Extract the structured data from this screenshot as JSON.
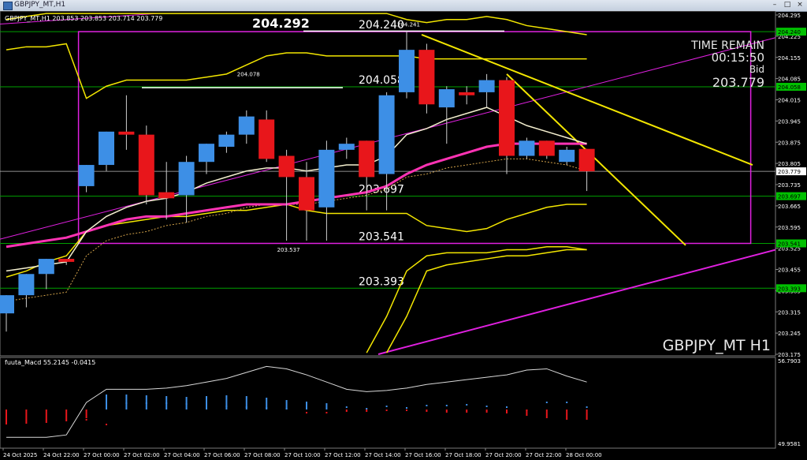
{
  "window": {
    "title": "GBPJPY_MT,H1"
  },
  "chart_data": {
    "type": "candlestick",
    "symbol": "GBPJPY_MT",
    "timeframe": "H1",
    "header": "GBPJPY_MT,H1  203.853 203.853 203.714 203.779",
    "watermark": "GBPJPY_MT H1",
    "timer": {
      "label1": "TIME REMAIN",
      "countdown": "00:15:50",
      "label2": "Bid",
      "bid": "203.779"
    },
    "ylim": [
      203.175,
      204.295
    ],
    "price_ticks": [
      "204.295",
      "204.225",
      "204.155",
      "204.085",
      "204.015",
      "203.945",
      "203.875",
      "203.805",
      "203.735",
      "203.665",
      "203.595",
      "203.525",
      "203.455",
      "203.385",
      "203.315",
      "203.245",
      "203.175"
    ],
    "price_tags": [
      {
        "value": "204.240",
        "color": "#00c000"
      },
      {
        "value": "204.058",
        "color": "#00c000"
      },
      {
        "value": "203.779",
        "color": "#ffffff"
      },
      {
        "value": "203.697",
        "color": "#00c000"
      },
      {
        "value": "203.541",
        "color": "#00c000"
      },
      {
        "value": "203.393",
        "color": "#00c000"
      }
    ],
    "levels": [
      {
        "label": "204.292",
        "y": 204.292,
        "kind": "big"
      },
      {
        "label": "204.240",
        "y": 204.24,
        "kind": "green"
      },
      {
        "label": "204.058",
        "y": 204.058,
        "kind": "green"
      },
      {
        "label": "203.697",
        "y": 203.697,
        "kind": "green"
      },
      {
        "label": "203.541",
        "y": 203.541,
        "kind": "green"
      },
      {
        "label": "203.393",
        "y": 203.393,
        "kind": "green"
      }
    ],
    "small_labels": [
      {
        "label": "204.078",
        "i": 12,
        "y": 204.078
      },
      {
        "label": "203.537",
        "i": 14,
        "y": 203.537
      },
      {
        "label": "204.241",
        "i": 20,
        "y": 204.241
      }
    ],
    "time_labels": [
      "24 Oct 2025",
      "24 Oct 22:00",
      "27 Oct 00:00",
      "27 Oct 02:00",
      "27 Oct 04:00",
      "27 Oct 06:00",
      "27 Oct 08:00",
      "27 Oct 10:00",
      "27 Oct 12:00",
      "27 Oct 14:00",
      "27 Oct 16:00",
      "27 Oct 18:00",
      "27 Oct 20:00",
      "27 Oct 22:00",
      "28 Oct 00:00"
    ],
    "candles": [
      {
        "o": 203.31,
        "h": 203.37,
        "l": 203.25,
        "c": 203.37
      },
      {
        "o": 203.37,
        "h": 203.44,
        "l": 203.33,
        "c": 203.44
      },
      {
        "o": 203.44,
        "h": 203.49,
        "l": 203.39,
        "c": 203.49
      },
      {
        "o": 203.49,
        "h": 203.49,
        "l": 203.47,
        "c": 203.48
      },
      {
        "o": 203.73,
        "h": 203.8,
        "l": 203.71,
        "c": 203.8
      },
      {
        "o": 203.8,
        "h": 203.91,
        "l": 203.78,
        "c": 203.91
      },
      {
        "o": 203.91,
        "h": 204.03,
        "l": 203.85,
        "c": 203.9
      },
      {
        "o": 203.9,
        "h": 203.93,
        "l": 203.67,
        "c": 203.7
      },
      {
        "o": 203.71,
        "h": 203.81,
        "l": 203.62,
        "c": 203.69
      },
      {
        "o": 203.7,
        "h": 203.83,
        "l": 203.61,
        "c": 203.81
      },
      {
        "o": 203.81,
        "h": 203.87,
        "l": 203.77,
        "c": 203.87
      },
      {
        "o": 203.86,
        "h": 203.91,
        "l": 203.84,
        "c": 203.9
      },
      {
        "o": 203.9,
        "h": 203.98,
        "l": 203.87,
        "c": 203.96
      },
      {
        "o": 203.95,
        "h": 203.98,
        "l": 203.81,
        "c": 203.82
      },
      {
        "o": 203.83,
        "h": 203.85,
        "l": 203.55,
        "c": 203.76
      },
      {
        "o": 203.76,
        "h": 203.81,
        "l": 203.55,
        "c": 203.65
      },
      {
        "o": 203.66,
        "h": 203.88,
        "l": 203.55,
        "c": 203.85
      },
      {
        "o": 203.85,
        "h": 203.89,
        "l": 203.82,
        "c": 203.87
      },
      {
        "o": 203.88,
        "h": 203.88,
        "l": 203.65,
        "c": 203.76
      },
      {
        "o": 203.77,
        "h": 204.04,
        "l": 203.65,
        "c": 204.03
      },
      {
        "o": 204.04,
        "h": 204.241,
        "l": 204.02,
        "c": 204.18
      },
      {
        "o": 204.18,
        "h": 204.2,
        "l": 203.97,
        "c": 204.0
      },
      {
        "o": 203.99,
        "h": 204.06,
        "l": 203.87,
        "c": 204.05
      },
      {
        "o": 204.04,
        "h": 204.06,
        "l": 204.0,
        "c": 204.03
      },
      {
        "o": 204.04,
        "h": 204.1,
        "l": 203.99,
        "c": 204.08
      },
      {
        "o": 204.08,
        "h": 204.09,
        "l": 203.77,
        "c": 203.83
      },
      {
        "o": 203.83,
        "h": 203.89,
        "l": 203.82,
        "c": 203.88
      },
      {
        "o": 203.88,
        "h": 203.88,
        "l": 203.82,
        "c": 203.83
      },
      {
        "o": 203.81,
        "h": 203.86,
        "l": 203.8,
        "c": 203.85
      },
      {
        "o": 203.853,
        "h": 203.853,
        "l": 203.714,
        "c": 203.779
      }
    ],
    "ma_white": [
      203.45,
      203.46,
      203.47,
      203.48,
      203.58,
      203.63,
      203.66,
      203.68,
      203.69,
      203.71,
      203.74,
      203.76,
      203.78,
      203.79,
      203.79,
      203.78,
      203.79,
      203.8,
      203.8,
      203.83,
      203.9,
      203.92,
      203.95,
      203.97,
      203.99,
      203.96,
      203.93,
      203.91,
      203.89,
      203.87
    ],
    "ma_pink": [
      203.53,
      203.54,
      203.55,
      203.56,
      203.58,
      203.6,
      203.62,
      203.63,
      203.63,
      203.64,
      203.65,
      203.66,
      203.67,
      203.67,
      203.67,
      203.68,
      203.69,
      203.7,
      203.71,
      203.73,
      203.77,
      203.8,
      203.82,
      203.84,
      203.86,
      203.87,
      203.87,
      203.87,
      203.87,
      203.87
    ],
    "ma_dotted": [
      203.35,
      203.36,
      203.37,
      203.38,
      203.5,
      203.55,
      203.57,
      203.58,
      203.6,
      203.61,
      203.63,
      203.64,
      203.66,
      203.67,
      203.67,
      203.67,
      203.68,
      203.69,
      203.7,
      203.72,
      203.76,
      203.77,
      203.79,
      203.8,
      203.81,
      203.82,
      203.82,
      203.81,
      203.8,
      203.78
    ],
    "band_upper": [
      204.18,
      204.19,
      204.19,
      204.2,
      204.02,
      204.06,
      204.08,
      204.08,
      204.08,
      204.08,
      204.09,
      204.1,
      204.13,
      204.16,
      204.17,
      204.17,
      204.16,
      204.16,
      204.16,
      204.16,
      204.16,
      204.15,
      204.15,
      204.15,
      204.15,
      204.15,
      204.15,
      204.15,
      204.15,
      204.15
    ],
    "band_lower": [
      203.43,
      203.45,
      203.48,
      203.5,
      203.58,
      203.6,
      203.61,
      203.62,
      203.63,
      203.63,
      203.64,
      203.65,
      203.65,
      203.66,
      203.67,
      203.65,
      203.64,
      203.64,
      203.64,
      203.64,
      203.64,
      203.6,
      203.59,
      203.58,
      203.59,
      203.62,
      203.64,
      203.66,
      203.67,
      203.67
    ],
    "band_outer_upper": [
      204.28,
      204.29,
      204.3,
      204.3,
      204.3,
      204.3,
      204.3,
      204.3,
      204.3,
      204.3,
      204.3,
      204.3,
      204.3,
      204.3,
      204.3,
      204.3,
      204.3,
      204.3,
      204.3,
      204.3,
      204.28,
      204.27,
      204.28,
      204.28,
      204.29,
      204.28,
      204.26,
      204.25,
      204.24,
      204.23
    ],
    "band_lower2": [
      null,
      null,
      null,
      null,
      null,
      null,
      null,
      null,
      null,
      null,
      null,
      null,
      null,
      null,
      null,
      null,
      null,
      null,
      203.18,
      203.3,
      203.45,
      203.5,
      203.51,
      203.51,
      203.51,
      203.52,
      203.52,
      203.53,
      203.53,
      203.52
    ],
    "band_lower3": [
      null,
      null,
      null,
      null,
      null,
      null,
      null,
      null,
      null,
      null,
      null,
      null,
      null,
      null,
      null,
      null,
      null,
      null,
      null,
      203.18,
      203.3,
      203.45,
      203.47,
      203.48,
      203.49,
      203.5,
      203.5,
      203.51,
      203.52,
      203.52
    ],
    "macd": {
      "label": "fuuta_Macd 55.2145  -0.0415",
      "ymax_label": "56.7903",
      "ymin_label": "49.9581",
      "ylim": [
        49.9581,
        56.7903
      ],
      "line": [
        50.6,
        50.6,
        50.6,
        50.8,
        53.5,
        54.6,
        54.6,
        54.6,
        54.7,
        54.9,
        55.2,
        55.5,
        56.0,
        56.5,
        56.3,
        55.8,
        55.2,
        54.6,
        54.4,
        54.5,
        54.7,
        55.0,
        55.2,
        55.4,
        55.6,
        55.8,
        56.2,
        56.3,
        55.7,
        55.2
      ],
      "hist": [
        -1.9,
        -1.8,
        -1.7,
        -1.5,
        -1.1,
        1.9,
        1.9,
        1.8,
        1.7,
        1.6,
        1.7,
        1.8,
        1.7,
        1.5,
        1.2,
        1.0,
        0.8,
        -0.3,
        -0.3,
        -0.2,
        -0.2,
        -0.3,
        -0.4,
        -0.4,
        -0.4,
        -0.5,
        -0.8,
        -1.1,
        -1.3,
        -1.3
      ],
      "signal": [
        null,
        null,
        null,
        null,
        -1.3,
        -1.9,
        0.8,
        0.8,
        0.8,
        0.7,
        0.6,
        0.4,
        0.3,
        0.2,
        0.1,
        -0.4,
        -0.4,
        0.3,
        0.1,
        0.4,
        0.2,
        0.5,
        0.5,
        0.6,
        0.4,
        0.3,
        -0.1,
        0.9,
        0.9,
        0.3
      ]
    },
    "colors": {
      "bull": "#3d8fe6",
      "bear": "#e8161b",
      "yellow": "#f3e600",
      "magenta": "#e020e0",
      "green_level": "#00a000",
      "pink_ma": "#ff33b4"
    }
  }
}
